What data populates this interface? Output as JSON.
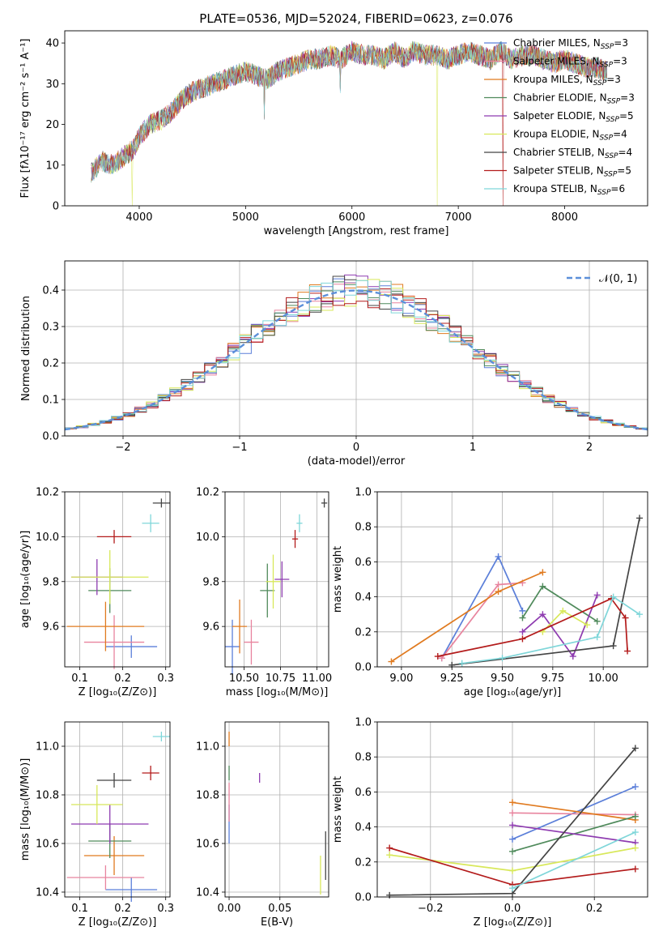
{
  "title": "PLATE=0536, MJD=52024, FIBERID=0623, z=0.076",
  "legend_entries": [
    {
      "base": "Chabrier MILES, N",
      "sub": "SSP",
      "tail": "=3",
      "color": "#5b7fd9"
    },
    {
      "base": "Salpeter MILES, N",
      "sub": "SSP",
      "tail": "=3",
      "color": "#e8849e"
    },
    {
      "base": "Kroupa MILES, N",
      "sub": "SSP",
      "tail": "=3",
      "color": "#e07a1f"
    },
    {
      "base": "Chabrier ELODIE, N",
      "sub": "SSP",
      "tail": "=3",
      "color": "#4f8a5b"
    },
    {
      "base": "Salpeter ELODIE, N",
      "sub": "SSP",
      "tail": "=5",
      "color": "#8e3bb0"
    },
    {
      "base": "Kroupa ELODIE, N",
      "sub": "SSP",
      "tail": "=4",
      "color": "#d8e85a"
    },
    {
      "base": "Chabrier STELIB, N",
      "sub": "SSP",
      "tail": "=4",
      "color": "#444444"
    },
    {
      "base": "Salpeter STELIB, N",
      "sub": "SSP",
      "tail": "=5",
      "color": "#b31b1b"
    },
    {
      "base": "Kroupa STELIB, N",
      "sub": "SSP",
      "tail": "=6",
      "color": "#7fd6d9"
    }
  ],
  "hist_legend": "𝒩(0, 1)",
  "chart_data": [
    {
      "id": "spectrum",
      "type": "line",
      "xlabel": "wavelength [Angstrom, rest frame]",
      "ylabel": "Flux [fλ10⁻¹⁷ erg cm⁻² s⁻¹ A⁻¹]",
      "xlim": [
        3300,
        8780
      ],
      "ylim": [
        0,
        43
      ],
      "xticks": [
        4000,
        5000,
        6000,
        7000,
        8000
      ],
      "yticks": [
        0,
        10,
        20,
        30,
        40
      ],
      "anchors": [
        [
          3550,
          8
        ],
        [
          3650,
          11
        ],
        [
          3750,
          10
        ],
        [
          3850,
          12
        ],
        [
          3950,
          14
        ],
        [
          4000,
          17
        ],
        [
          4100,
          20
        ],
        [
          4200,
          21
        ],
        [
          4300,
          23
        ],
        [
          4400,
          26
        ],
        [
          4500,
          28
        ],
        [
          4600,
          29
        ],
        [
          4700,
          30
        ],
        [
          4800,
          31
        ],
        [
          4900,
          32
        ],
        [
          5000,
          33
        ],
        [
          5100,
          32
        ],
        [
          5200,
          31
        ],
        [
          5300,
          33
        ],
        [
          5400,
          34
        ],
        [
          5500,
          35
        ],
        [
          5600,
          36
        ],
        [
          5700,
          36
        ],
        [
          5800,
          37
        ],
        [
          5900,
          36
        ],
        [
          6000,
          38
        ],
        [
          6100,
          37
        ],
        [
          6200,
          37
        ],
        [
          6300,
          36
        ],
        [
          6400,
          38
        ],
        [
          6500,
          36
        ],
        [
          6563,
          38
        ],
        [
          6700,
          37
        ],
        [
          6800,
          37
        ],
        [
          6900,
          36
        ],
        [
          7000,
          37
        ],
        [
          7100,
          38
        ],
        [
          7200,
          37
        ],
        [
          7300,
          36
        ],
        [
          7400,
          38
        ],
        [
          7500,
          36
        ],
        [
          7600,
          37
        ],
        [
          7700,
          37
        ],
        [
          7800,
          36
        ],
        [
          7900,
          35
        ],
        [
          8000,
          36
        ],
        [
          8100,
          35
        ],
        [
          8200,
          34
        ],
        [
          8300,
          34
        ],
        [
          8400,
          33
        ]
      ],
      "dips": [
        [
          3933,
          0
        ],
        [
          5175,
          22
        ],
        [
          5890,
          28
        ],
        [
          6800,
          0
        ],
        [
          7420,
          0
        ]
      ]
    },
    {
      "id": "residuals",
      "type": "bar",
      "xlabel": "(data-model)/error",
      "ylabel": "Normed distribution",
      "xlim": [
        -2.5,
        2.5
      ],
      "ylim": [
        0,
        0.48
      ],
      "xticks": [
        -2,
        -1,
        0,
        1,
        2
      ],
      "yticks": [
        0.0,
        0.1,
        0.2,
        0.3,
        0.4
      ],
      "bin_width": 0.1,
      "reference": "N(0,1)"
    },
    {
      "id": "age_vs_Z",
      "type": "scatter",
      "xlabel": "Z [log₁₀(Z/Z⊙)]",
      "ylabel": "age  [log₁₀(age/yr)]",
      "xlim": [
        0.065,
        0.31
      ],
      "ylim": [
        9.42,
        10.2
      ],
      "xticks": [
        0.1,
        0.2,
        0.3
      ],
      "yticks": [
        9.6,
        9.8,
        10.0,
        10.2
      ],
      "points": [
        [
          0.22,
          9.51,
          0.06,
          0.05
        ],
        [
          0.18,
          9.53,
          0.07,
          0.12
        ],
        [
          0.16,
          9.6,
          0.09,
          0.11
        ],
        [
          0.17,
          9.76,
          0.05,
          0.1
        ],
        [
          0.14,
          9.82,
          0.06,
          0.08
        ],
        [
          0.17,
          9.82,
          0.09,
          0.12
        ],
        [
          0.29,
          10.15,
          0.02,
          0.02
        ],
        [
          0.18,
          10.0,
          0.04,
          0.03
        ],
        [
          0.265,
          10.06,
          0.02,
          0.04
        ]
      ]
    },
    {
      "id": "age_vs_mass",
      "type": "scatter",
      "xlabel": "mass [log₁₀(M/M⊙)]",
      "ylabel": "",
      "xlim": [
        10.37,
        11.08
      ],
      "ylim": [
        9.42,
        10.2
      ],
      "xticks": [
        10.5,
        10.75,
        11.0
      ],
      "yticks": [
        9.6,
        9.8,
        10.0,
        10.2
      ],
      "points": [
        [
          10.42,
          9.51,
          0.05,
          0.12
        ],
        [
          10.55,
          9.53,
          0.05,
          0.1
        ],
        [
          10.47,
          9.6,
          0.05,
          0.12
        ],
        [
          10.66,
          9.76,
          0.05,
          0.12
        ],
        [
          10.76,
          9.81,
          0.05,
          0.08
        ],
        [
          10.7,
          9.8,
          0.05,
          0.12
        ],
        [
          11.05,
          10.15,
          0.02,
          0.02
        ],
        [
          10.85,
          9.99,
          0.02,
          0.04
        ],
        [
          10.88,
          10.06,
          0.02,
          0.04
        ]
      ]
    },
    {
      "id": "mass_weight_vs_age",
      "type": "line",
      "xlabel": "age  [log₁₀(age/yr)]",
      "ylabel": "mass weight",
      "xlim": [
        8.88,
        10.22
      ],
      "ylim": [
        0,
        1.0
      ],
      "xticks": [
        9.0,
        9.25,
        9.5,
        9.75,
        10.0
      ],
      "yticks": [
        0.0,
        0.2,
        0.4,
        0.6,
        0.8,
        1.0
      ],
      "series": [
        {
          "color": "#5b7fd9",
          "points": [
            [
              9.2,
              0.05
            ],
            [
              9.48,
              0.63
            ],
            [
              9.6,
              0.32
            ]
          ]
        },
        {
          "color": "#e8849e",
          "points": [
            [
              9.2,
              0.05
            ],
            [
              9.48,
              0.47
            ],
            [
              9.6,
              0.48
            ]
          ]
        },
        {
          "color": "#e07a1f",
          "points": [
            [
              8.95,
              0.03
            ],
            [
              9.48,
              0.43
            ],
            [
              9.7,
              0.54
            ]
          ]
        },
        {
          "color": "#4f8a5b",
          "points": [
            [
              9.6,
              0.28
            ],
            [
              9.7,
              0.46
            ],
            [
              9.97,
              0.26
            ]
          ]
        },
        {
          "color": "#8e3bb0",
          "points": [
            [
              9.6,
              0.2
            ],
            [
              9.7,
              0.3
            ],
            [
              9.85,
              0.06
            ],
            [
              9.97,
              0.41
            ]
          ]
        },
        {
          "color": "#d8e85a",
          "points": [
            [
              9.7,
              0.2
            ],
            [
              9.8,
              0.32
            ],
            [
              9.92,
              0.24
            ]
          ]
        },
        {
          "color": "#444444",
          "points": [
            [
              9.25,
              0.01
            ],
            [
              10.05,
              0.12
            ],
            [
              10.18,
              0.85
            ]
          ]
        },
        {
          "color": "#b31b1b",
          "points": [
            [
              9.18,
              0.06
            ],
            [
              9.6,
              0.16
            ],
            [
              10.04,
              0.39
            ],
            [
              10.11,
              0.28
            ],
            [
              10.12,
              0.09
            ]
          ]
        },
        {
          "color": "#7fd6d9",
          "points": [
            [
              9.3,
              0.02
            ],
            [
              9.5,
              0.05
            ],
            [
              9.97,
              0.17
            ],
            [
              10.05,
              0.4
            ],
            [
              10.18,
              0.3
            ]
          ]
        }
      ]
    },
    {
      "id": "mass_vs_Z",
      "type": "scatter",
      "xlabel": "Z [log₁₀(Z/Z⊙)]",
      "ylabel": "mass [log₁₀(M/M⊙)]",
      "xlim": [
        0.065,
        0.31
      ],
      "ylim": [
        10.38,
        11.1
      ],
      "xticks": [
        0.1,
        0.2,
        0.3
      ],
      "yticks": [
        10.4,
        10.6,
        10.8,
        11.0
      ],
      "points": [
        [
          0.22,
          10.41,
          0.06,
          0.05
        ],
        [
          0.16,
          10.46,
          0.09,
          0.05
        ],
        [
          0.18,
          10.55,
          0.07,
          0.08
        ],
        [
          0.17,
          10.61,
          0.05,
          0.07
        ],
        [
          0.17,
          10.68,
          0.09,
          0.08
        ],
        [
          0.14,
          10.76,
          0.06,
          0.08
        ],
        [
          0.18,
          10.86,
          0.04,
          0.03
        ],
        [
          0.265,
          10.89,
          0.02,
          0.03
        ],
        [
          0.29,
          11.04,
          0.02,
          0.02
        ]
      ]
    },
    {
      "id": "mass_vs_EBV",
      "type": "scatter",
      "xlabel": "E(B-V)",
      "ylabel": "",
      "xlim": [
        -0.004,
        0.098
      ],
      "ylim": [
        10.38,
        11.1
      ],
      "xticks": [
        0.0,
        0.05
      ],
      "yticks": [
        10.4,
        10.6,
        10.8,
        11.0
      ],
      "points": [
        [
          0.0,
          10.68,
          0.0,
          0.08
        ],
        [
          0.0,
          10.77,
          0.0,
          0.08
        ],
        [
          0.0,
          11.03,
          0.0,
          0.03
        ],
        [
          0.0,
          10.89,
          0.0,
          0.03
        ],
        [
          0.03,
          10.87,
          0.0,
          0.02
        ],
        [
          0.09,
          10.47,
          0.0,
          0.08
        ],
        [
          0.095,
          10.55,
          0.0,
          0.1
        ]
      ]
    },
    {
      "id": "mass_weight_vs_Z",
      "type": "line",
      "xlabel": "Z [log₁₀(Z/Z⊙)]",
      "ylabel": "mass weight",
      "xlim": [
        -0.33,
        0.33
      ],
      "ylim": [
        0,
        1.0
      ],
      "xticks": [
        -0.2,
        0.0,
        0.2
      ],
      "yticks": [
        0.0,
        0.2,
        0.4,
        0.6,
        0.8,
        1.0
      ],
      "series": [
        {
          "color": "#5b7fd9",
          "points": [
            [
              0.0,
              0.33
            ],
            [
              0.3,
              0.63
            ]
          ]
        },
        {
          "color": "#e8849e",
          "points": [
            [
              0.0,
              0.48
            ],
            [
              0.3,
              0.47
            ]
          ]
        },
        {
          "color": "#e07a1f",
          "points": [
            [
              0.0,
              0.54
            ],
            [
              0.3,
              0.44
            ]
          ]
        },
        {
          "color": "#4f8a5b",
          "points": [
            [
              0.0,
              0.26
            ],
            [
              0.3,
              0.46
            ]
          ]
        },
        {
          "color": "#8e3bb0",
          "points": [
            [
              0.0,
              0.41
            ],
            [
              0.3,
              0.31
            ]
          ]
        },
        {
          "color": "#d8e85a",
          "points": [
            [
              -0.3,
              0.24
            ],
            [
              0.0,
              0.15
            ],
            [
              0.3,
              0.28
            ]
          ]
        },
        {
          "color": "#444444",
          "points": [
            [
              -0.3,
              0.01
            ],
            [
              0.0,
              0.02
            ],
            [
              0.3,
              0.85
            ]
          ]
        },
        {
          "color": "#b31b1b",
          "points": [
            [
              -0.3,
              0.28
            ],
            [
              0.0,
              0.07
            ],
            [
              0.3,
              0.16
            ]
          ]
        },
        {
          "color": "#7fd6d9",
          "points": [
            [
              0.0,
              0.05
            ],
            [
              0.3,
              0.37
            ]
          ]
        }
      ]
    }
  ]
}
